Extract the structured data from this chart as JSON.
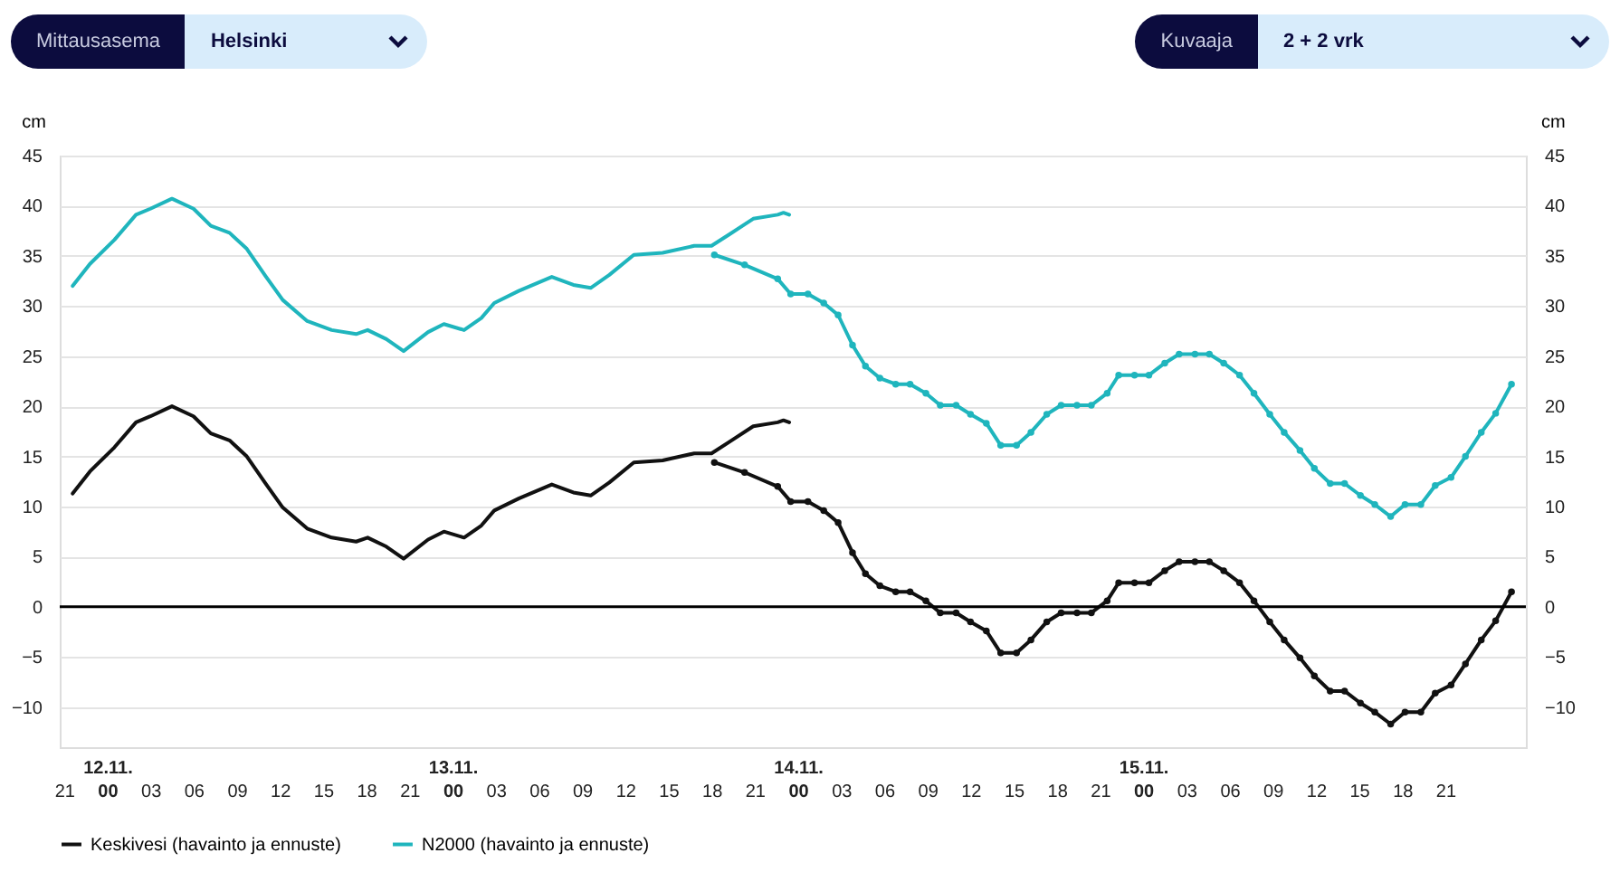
{
  "chart_data": {
    "type": "line",
    "ylabel": "cm",
    "y2label": "cm",
    "annotations": [
      "Mittausasema",
      "Helsinki",
      "Kuvaaja",
      "2 + 2 vrk"
    ],
    "xlim": [
      "--11-11T20:42",
      "--11-16T02:36"
    ],
    "xticks": [
      {
        "value": "--11-11T21:00",
        "label": "21"
      },
      {
        "value": "--11-12T00:00",
        "label": "12.11.\n00"
      },
      {
        "value": "--11-12T03:00",
        "label": "03"
      },
      {
        "value": "--11-12T06:00",
        "label": "06"
      },
      {
        "value": "--11-12T09:00",
        "label": "09"
      },
      {
        "value": "--11-12T12:00",
        "label": "12"
      },
      {
        "value": "--11-12T15:00",
        "label": "15"
      },
      {
        "value": "--11-12T18:00",
        "label": "18"
      },
      {
        "value": "--11-12T21:00",
        "label": "21"
      },
      {
        "value": "--11-13T00:00",
        "label": "13.11.\n00"
      },
      {
        "value": "--11-13T03:00",
        "label": "03"
      },
      {
        "value": "--11-13T06:00",
        "label": "06"
      },
      {
        "value": "--11-13T09:00",
        "label": "09"
      },
      {
        "value": "--11-13T12:00",
        "label": "12"
      },
      {
        "value": "--11-13T15:00",
        "label": "15"
      },
      {
        "value": "--11-13T18:00",
        "label": "18"
      },
      {
        "value": "--11-13T21:00",
        "label": "21"
      },
      {
        "value": "--11-14T00:00",
        "label": "14.11.\n00"
      },
      {
        "value": "--11-14T03:00",
        "label": "03"
      },
      {
        "value": "--11-14T06:00",
        "label": "06"
      },
      {
        "value": "--11-14T09:00",
        "label": "09"
      },
      {
        "value": "--11-14T12:00",
        "label": "12"
      },
      {
        "value": "--11-14T15:00",
        "label": "15"
      },
      {
        "value": "--11-14T18:00",
        "label": "18"
      },
      {
        "value": "--11-14T21:00",
        "label": "21"
      },
      {
        "value": "--11-15T00:00",
        "label": "15.11.\n00"
      },
      {
        "value": "--11-15T03:00",
        "label": "03"
      },
      {
        "value": "--11-15T06:00",
        "label": "06"
      },
      {
        "value": "--11-15T09:00",
        "label": "09"
      },
      {
        "value": "--11-15T12:00",
        "label": "12"
      },
      {
        "value": "--11-15T15:00",
        "label": "15"
      },
      {
        "value": "--11-15T18:00",
        "label": "18"
      },
      {
        "value": "--11-15T21:00",
        "label": "21"
      }
    ],
    "ylim": [
      -14,
      45
    ],
    "yticks": [
      -10,
      -5,
      0,
      5,
      10,
      15,
      20,
      25,
      30,
      35,
      40,
      45
    ],
    "y2lim": [
      -14,
      45
    ],
    "y2ticks": [
      -10,
      -5,
      0,
      5,
      10,
      15,
      20,
      25,
      30,
      35,
      40,
      45
    ],
    "grid": "y",
    "legend": "bottom",
    "ref_lines": [
      {
        "axis": "y",
        "value": 0,
        "color": "#000000"
      }
    ],
    "series": [
      {
        "name": "Keskivesi (havainto ja ennuste)",
        "color": "#111111",
        "x": [
          "--11-11T21:36",
          "--11-11T22:48",
          "--11-12T00:30",
          "--11-12T02:00",
          "--11-12T03:00",
          "--11-12T04:30",
          "--11-12T06:00",
          "--11-12T07:12",
          "--11-12T08:30",
          "--11-12T09:42",
          "--11-12T11:00",
          "--11-12T12:12",
          "--11-12T13:54",
          "--11-12T15:36",
          "--11-12T17:18",
          "--11-12T18:06",
          "--11-12T19:24",
          "--11-12T20:36",
          "--11-12T22:18",
          "--11-12T23:24",
          "--11-13T00:48",
          "--11-13T02:00",
          "--11-13T02:54",
          "--11-13T04:36",
          "--11-13T06:54",
          "--11-13T08:24",
          "--11-13T09:36",
          "--11-13T10:54",
          "--11-13T12:36",
          "--11-13T14:36",
          "--11-13T16:48",
          "--11-13T18:00",
          "--11-13T19:18",
          "--11-13T20:54",
          "--11-13T22:36",
          "--11-13T23:00",
          "--11-13T23:24"
        ],
        "values": [
          11.3,
          13.5,
          15.9,
          18.4,
          19.0,
          20.0,
          19.0,
          17.3,
          16.6,
          15.0,
          12.3,
          9.9,
          7.8,
          6.9,
          6.5,
          6.9,
          6.0,
          4.8,
          6.7,
          7.5,
          6.9,
          8.1,
          9.6,
          10.8,
          12.2,
          11.4,
          11.1,
          12.4,
          14.4,
          14.6,
          15.3,
          15.3,
          16.5,
          18.0,
          18.4,
          18.6,
          18.4
        ]
      },
      {
        "name": "N2000 (havainto ja ennuste)",
        "color": "#1fb5bd",
        "x": [
          "--11-11T21:36",
          "--11-11T22:48",
          "--11-12T00:30",
          "--11-12T02:00",
          "--11-12T03:00",
          "--11-12T04:30",
          "--11-12T06:00",
          "--11-12T07:12",
          "--11-12T08:30",
          "--11-12T09:42",
          "--11-12T11:00",
          "--11-12T12:12",
          "--11-12T13:54",
          "--11-12T15:36",
          "--11-12T17:18",
          "--11-12T18:06",
          "--11-12T19:24",
          "--11-12T20:36",
          "--11-12T22:18",
          "--11-12T23:24",
          "--11-13T00:48",
          "--11-13T02:00",
          "--11-13T02:54",
          "--11-13T04:36",
          "--11-13T06:54",
          "--11-13T08:24",
          "--11-13T09:36",
          "--11-13T10:54",
          "--11-13T12:36",
          "--11-13T14:36",
          "--11-13T16:48",
          "--11-13T18:00",
          "--11-13T19:18",
          "--11-13T20:54",
          "--11-13T22:36",
          "--11-13T23:00",
          "--11-13T23:24"
        ],
        "values": [
          32.0,
          34.2,
          36.6,
          39.1,
          39.7,
          40.7,
          39.7,
          38.0,
          37.3,
          35.7,
          33.0,
          30.6,
          28.5,
          27.6,
          27.2,
          27.6,
          26.7,
          25.5,
          27.4,
          28.2,
          27.6,
          28.8,
          30.3,
          31.5,
          32.9,
          32.1,
          31.8,
          33.1,
          35.1,
          35.3,
          36.0,
          36.0,
          37.2,
          38.7,
          39.1,
          39.3,
          39.1
        ]
      },
      {
        "color": "#111111",
        "marker": "circle",
        "x": [
          "--11-13T18:12",
          "--11-13T20:18",
          "--11-13T22:36",
          "--11-13T23:30",
          "--11-14T00:42",
          "--11-14T01:48",
          "--11-14T02:48",
          "--11-14T03:48",
          "--11-14T04:42",
          "--11-14T05:42",
          "--11-14T06:48",
          "--11-14T07:48",
          "--11-14T08:54",
          "--11-14T09:54",
          "--11-14T11:00",
          "--11-14T12:00",
          "--11-14T13:06",
          "--11-14T14:06",
          "--11-14T15:12",
          "--11-14T16:12",
          "--11-14T17:18",
          "--11-14T18:18",
          "--11-14T19:24",
          "--11-14T20:24",
          "--11-14T21:30",
          "--11-14T22:18",
          "--11-14T23:24",
          "--11-15T00:24",
          "--11-15T01:30",
          "--11-15T02:30",
          "--11-15T03:36",
          "--11-15T04:36",
          "--11-15T05:36",
          "--11-15T06:42",
          "--11-15T07:42",
          "--11-15T08:48",
          "--11-15T09:48",
          "--11-15T10:54",
          "--11-15T11:54",
          "--11-15T13:00",
          "--11-15T14:00",
          "--11-15T15:06",
          "--11-15T16:06",
          "--11-15T17:12",
          "--11-15T18:12",
          "--11-15T19:18",
          "--11-15T20:18",
          "--11-15T21:24",
          "--11-15T22:24",
          "--11-15T23:30",
          "--11-16T00:30",
          "--11-16T01:36"
        ],
        "values": [
          14.4,
          13.4,
          12.0,
          10.5,
          10.5,
          9.6,
          8.4,
          5.4,
          3.3,
          2.1,
          1.5,
          1.5,
          0.6,
          -0.6,
          -0.6,
          -1.5,
          -2.4,
          -4.6,
          -4.6,
          -3.3,
          -1.5,
          -0.6,
          -0.6,
          -0.6,
          0.6,
          2.4,
          2.4,
          2.4,
          3.6,
          4.5,
          4.5,
          4.5,
          3.6,
          2.4,
          0.6,
          -1.5,
          -3.3,
          -5.1,
          -6.9,
          -8.4,
          -8.4,
          -9.6,
          -10.5,
          -11.7,
          -10.5,
          -10.5,
          -8.6,
          -7.8,
          -5.7,
          -3.3,
          -1.4,
          1.5
        ]
      },
      {
        "color": "#1fb5bd",
        "marker": "circle",
        "x": [
          "--11-13T18:12",
          "--11-13T20:18",
          "--11-13T22:36",
          "--11-13T23:30",
          "--11-14T00:42",
          "--11-14T01:48",
          "--11-14T02:48",
          "--11-14T03:48",
          "--11-14T04:42",
          "--11-14T05:42",
          "--11-14T06:48",
          "--11-14T07:48",
          "--11-14T08:54",
          "--11-14T09:54",
          "--11-14T11:00",
          "--11-14T12:00",
          "--11-14T13:06",
          "--11-14T14:06",
          "--11-14T15:12",
          "--11-14T16:12",
          "--11-14T17:18",
          "--11-14T18:18",
          "--11-14T19:24",
          "--11-14T20:24",
          "--11-14T21:30",
          "--11-14T22:18",
          "--11-14T23:24",
          "--11-15T00:24",
          "--11-15T01:30",
          "--11-15T02:30",
          "--11-15T03:36",
          "--11-15T04:36",
          "--11-15T05:36",
          "--11-15T06:42",
          "--11-15T07:42",
          "--11-15T08:48",
          "--11-15T09:48",
          "--11-15T10:54",
          "--11-15T11:54",
          "--11-15T13:00",
          "--11-15T14:00",
          "--11-15T15:06",
          "--11-15T16:06",
          "--11-15T17:12",
          "--11-15T18:12",
          "--11-15T19:18",
          "--11-15T20:18",
          "--11-15T21:24",
          "--11-15T22:24",
          "--11-15T23:30",
          "--11-16T00:30",
          "--11-16T01:36"
        ],
        "values": [
          35.1,
          34.1,
          32.7,
          31.2,
          31.2,
          30.3,
          29.1,
          26.1,
          24.0,
          22.8,
          22.2,
          22.2,
          21.3,
          20.1,
          20.1,
          19.2,
          18.3,
          16.1,
          16.1,
          17.4,
          19.2,
          20.1,
          20.1,
          20.1,
          21.3,
          23.1,
          23.1,
          23.1,
          24.3,
          25.2,
          25.2,
          25.2,
          24.3,
          23.1,
          21.3,
          19.2,
          17.4,
          15.6,
          13.8,
          12.3,
          12.3,
          11.1,
          10.2,
          9.0,
          10.2,
          10.2,
          12.1,
          12.9,
          15.0,
          17.4,
          19.3,
          22.2
        ]
      }
    ]
  }
}
